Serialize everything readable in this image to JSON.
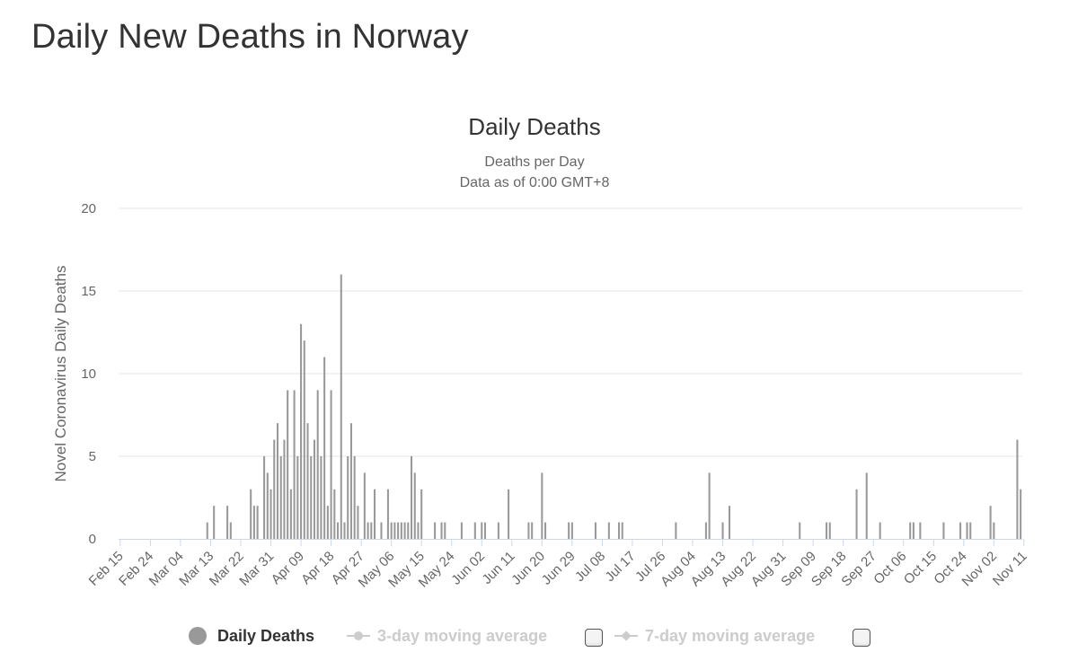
{
  "page": {
    "title": "Daily New Deaths in Norway"
  },
  "colors": {
    "bar": "#999999",
    "grid": "#e6e6e6",
    "axis": "#ccd6eb",
    "inactive": "#cccccc"
  },
  "chart_data": {
    "type": "bar",
    "title": "Daily Deaths",
    "subtitle": [
      "Deaths per Day",
      "Data as of 0:00 GMT+8"
    ],
    "ylabel": "Novel Coronavirus Daily Deaths",
    "xlabel": "",
    "ylim": [
      0,
      20
    ],
    "yticks": [
      0,
      5,
      10,
      15,
      20
    ],
    "grid": true,
    "legend_position": "bottom-center",
    "start_date": "Feb 15",
    "xticks": [
      "Feb 15",
      "Feb 24",
      "Mar 04",
      "Mar 13",
      "Mar 22",
      "Mar 31",
      "Apr 09",
      "Apr 18",
      "Apr 27",
      "May 06",
      "May 15",
      "May 24",
      "Jun 02",
      "Jun 11",
      "Jun 20",
      "Jun 29",
      "Jul 08",
      "Jul 17",
      "Jul 26",
      "Aug 04",
      "Aug 13",
      "Aug 22",
      "Aug 31",
      "Sep 09",
      "Sep 18",
      "Sep 27",
      "Oct 06",
      "Oct 15",
      "Oct 24",
      "Nov 02",
      "Nov 11"
    ],
    "series": [
      {
        "name": "Daily Deaths",
        "values": [
          0,
          0,
          0,
          0,
          0,
          0,
          0,
          0,
          0,
          0,
          0,
          0,
          0,
          0,
          0,
          0,
          0,
          0,
          0,
          0,
          0,
          0,
          0,
          0,
          0,
          0,
          1,
          0,
          2,
          0,
          0,
          0,
          2,
          1,
          0,
          0,
          0,
          0,
          0,
          3,
          2,
          2,
          0,
          5,
          4,
          3,
          6,
          7,
          5,
          6,
          9,
          3,
          9,
          5,
          13,
          12,
          7,
          5,
          6,
          9,
          5,
          11,
          2,
          9,
          3,
          1,
          16,
          1,
          5,
          7,
          5,
          2,
          0,
          4,
          1,
          1,
          3,
          0,
          1,
          0,
          3,
          1,
          1,
          1,
          1,
          1,
          1,
          5,
          4,
          1,
          3,
          0,
          0,
          0,
          1,
          0,
          1,
          1,
          0,
          0,
          0,
          0,
          1,
          0,
          0,
          0,
          1,
          0,
          1,
          1,
          0,
          0,
          0,
          1,
          0,
          0,
          3,
          0,
          0,
          0,
          0,
          0,
          1,
          1,
          0,
          0,
          4,
          1,
          0,
          0,
          0,
          0,
          0,
          0,
          1,
          1,
          0,
          0,
          0,
          0,
          0,
          0,
          1,
          0,
          0,
          0,
          1,
          0,
          0,
          1,
          1,
          0,
          0,
          0,
          0,
          0,
          0,
          0,
          0,
          0,
          0,
          0,
          0,
          0,
          0,
          0,
          1,
          0,
          0,
          0,
          0,
          0,
          0,
          0,
          0,
          1,
          4,
          0,
          0,
          0,
          1,
          0,
          2,
          0,
          0,
          0,
          0,
          0,
          0,
          0,
          0,
          0,
          0,
          0,
          0,
          0,
          0,
          0,
          0,
          0,
          0,
          0,
          0,
          1,
          0,
          0,
          0,
          0,
          0,
          0,
          0,
          1,
          1,
          0,
          0,
          0,
          0,
          0,
          0,
          0,
          3,
          0,
          0,
          4,
          0,
          0,
          0,
          1,
          0,
          0,
          0,
          0,
          0,
          0,
          0,
          0,
          1,
          1,
          0,
          1,
          0,
          0,
          0,
          0,
          0,
          0,
          1,
          0,
          0,
          0,
          0,
          1,
          0,
          1,
          1,
          0,
          0,
          0,
          0,
          0,
          2,
          1,
          0,
          0,
          0,
          0,
          0,
          0,
          6,
          3
        ]
      }
    ]
  },
  "legend": {
    "items": [
      {
        "label": "Daily Deaths",
        "active": true
      },
      {
        "label": "3-day moving average",
        "active": false
      },
      {
        "label": "7-day moving average",
        "active": false
      }
    ]
  }
}
